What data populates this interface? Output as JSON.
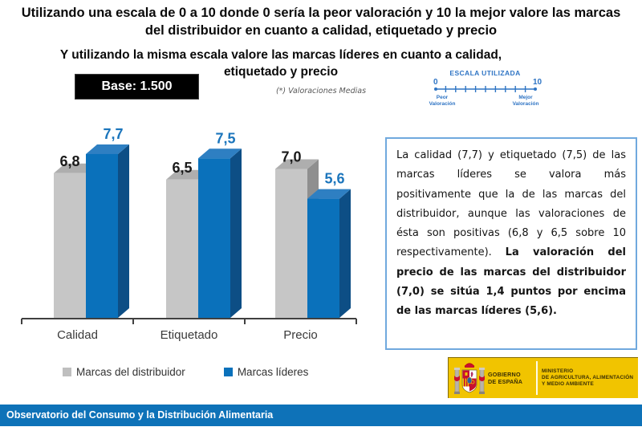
{
  "title": "Utilizando una escala de 0 a 10 donde 0 sería la peor valoración y 10 la mejor valore las marcas del distribuidor en cuanto a calidad, etiquetado y precio",
  "subtitle": "Y utilizando la misma escala valore las marcas líderes en cuanto a calidad, etiquetado y precio",
  "base_label": "Base: 1.500",
  "note": "(*) Valoraciones Medias",
  "scale_widget": {
    "title": "ESCALA UTILIZADA",
    "min_label": "0",
    "max_label": "10",
    "min": 0,
    "max": 10,
    "left_caption_line1": "Peor",
    "left_caption_line2": "Valoración",
    "right_caption_line1": "Mejor",
    "right_caption_line2": "Valoración",
    "color": "#2E74C4"
  },
  "chart_data": {
    "type": "bar",
    "style": "3d-column",
    "categories": [
      "Calidad",
      "Etiquetado",
      "Precio"
    ],
    "series": [
      {
        "name": "Marcas del distribuidor",
        "values": [
          6.8,
          6.5,
          7.0
        ],
        "front_color": "#C6C6C6",
        "top_color": "#AEAEAE",
        "side_color": "#8F8F8F",
        "label_color": "#1A1A1A"
      },
      {
        "name": "Marcas líderes",
        "values": [
          7.7,
          7.5,
          5.6
        ],
        "front_color": "#0A71BB",
        "top_color": "#2E7FC2",
        "side_color": "#0D4E85",
        "label_color": "#1B75BC"
      }
    ],
    "ylim": [
      0,
      10
    ],
    "decimal_separator": ",",
    "value_labels_shown": true,
    "legend_position": "bottom",
    "axis_color": "#404040",
    "category_label_color": "#3a3a3a"
  },
  "legend": {
    "items": [
      {
        "label": "Marcas del distribuidor",
        "color": "#BFBFBF"
      },
      {
        "label": "Marcas líderes",
        "color": "#0A71BB"
      }
    ]
  },
  "analysis_box": {
    "text_normal": "La calidad (7,7) y etiquetado (7,5) de las marcas líderes se valora más positivamente que la de las marcas del distribuidor, aunque las valoraciones de ésta son positivas (6,8 y 6,5 sobre 10 respectivamente). ",
    "text_bold": "La valoración del precio de las marcas del distribuidor (7,0) se sitúa 1,4 puntos por encima de las marcas líderes (5,6).",
    "border_color": "#70A9DE"
  },
  "logo": {
    "gobierno_line1": "GOBIERNO",
    "gobierno_line2": "DE ESPAÑA",
    "ministerio_line1": "MINISTERIO",
    "ministerio_line2": "DE AGRICULTURA, ALIMENTACIÓN",
    "ministerio_line3": "Y MEDIO AMBIENTE",
    "background": "#F1C400"
  },
  "footer": {
    "text": "Observatorio del Consumo y la Distribución Alimentaria",
    "background": "#0E72B8"
  }
}
